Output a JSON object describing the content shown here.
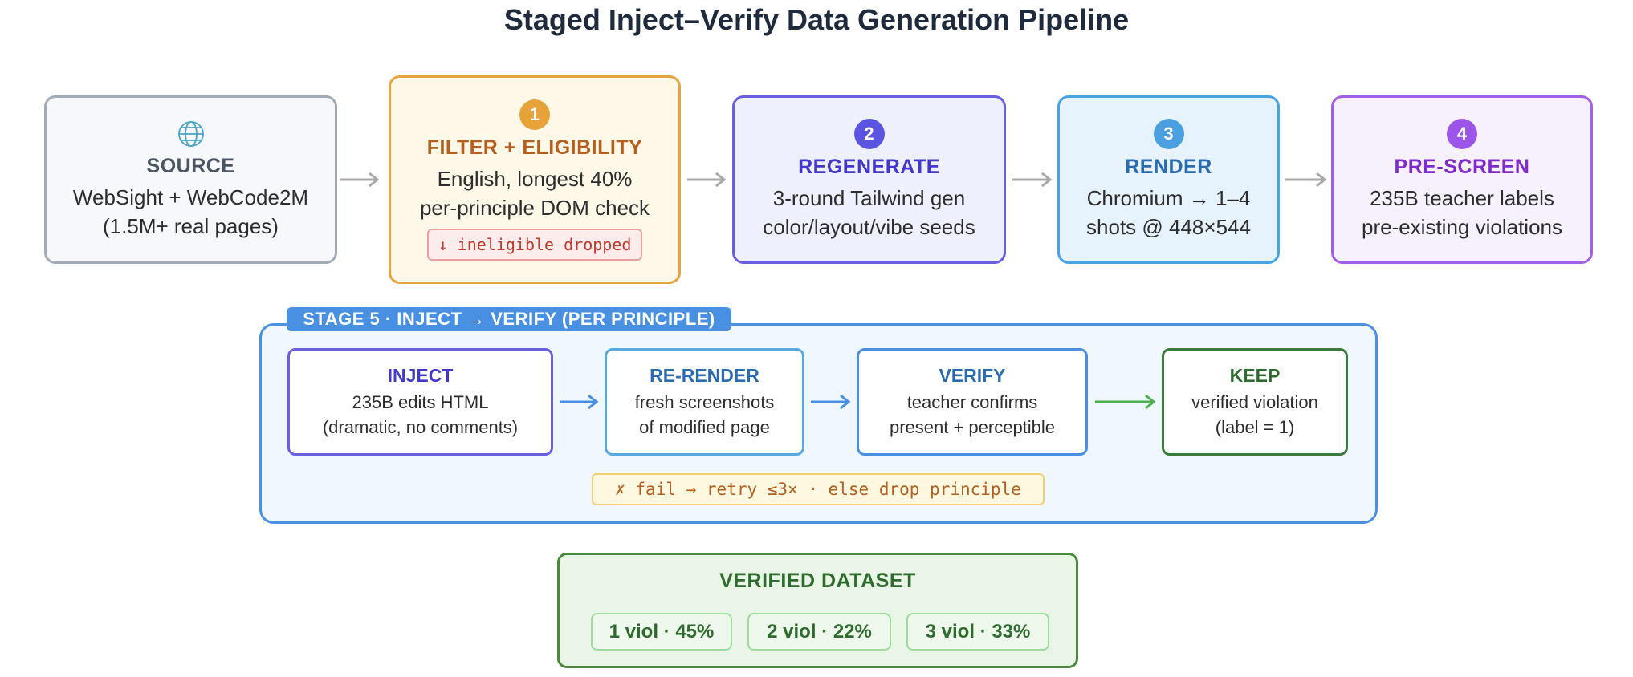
{
  "title": "Staged Inject–Verify Data Generation Pipeline",
  "stages": [
    {
      "label": "SOURCE",
      "lines": [
        "WebSight + WebCode2M",
        "(1.5M+ real pages)"
      ]
    },
    {
      "badge": "1",
      "label": "FILTER + ELIGIBILITY",
      "lines": [
        "English, longest 40%",
        "per-principle DOM check"
      ],
      "note": "↓ ineligible dropped"
    },
    {
      "badge": "2",
      "label": "REGENERATE",
      "lines": [
        "3-round Tailwind gen",
        "color/layout/vibe seeds"
      ]
    },
    {
      "badge": "3",
      "label": "RENDER",
      "lines": [
        "Chromium → 1–4",
        "shots @ 448×544"
      ]
    },
    {
      "badge": "4",
      "label": "PRE-SCREEN",
      "lines": [
        "235B teacher labels",
        "pre-existing violations"
      ]
    }
  ],
  "stage5": {
    "label": "STAGE 5 · INJECT → VERIFY (PER PRINCIPLE)",
    "steps": [
      {
        "label": "INJECT",
        "lines": [
          "235B edits HTML",
          "(dramatic, no comments)"
        ]
      },
      {
        "label": "RE-RENDER",
        "lines": [
          "fresh screenshots",
          "of modified page"
        ]
      },
      {
        "label": "VERIFY",
        "lines": [
          "teacher confirms",
          "present + perceptible"
        ]
      },
      {
        "label": "KEEP",
        "lines": [
          "verified violation",
          "(label = 1)"
        ]
      }
    ],
    "retry": "✗ fail → retry ≤3× · else drop principle"
  },
  "dataset": {
    "title": "VERIFIED DATASET",
    "items": [
      "1 viol · 45%",
      "2 viol · 22%",
      "3 viol · 33%"
    ]
  }
}
